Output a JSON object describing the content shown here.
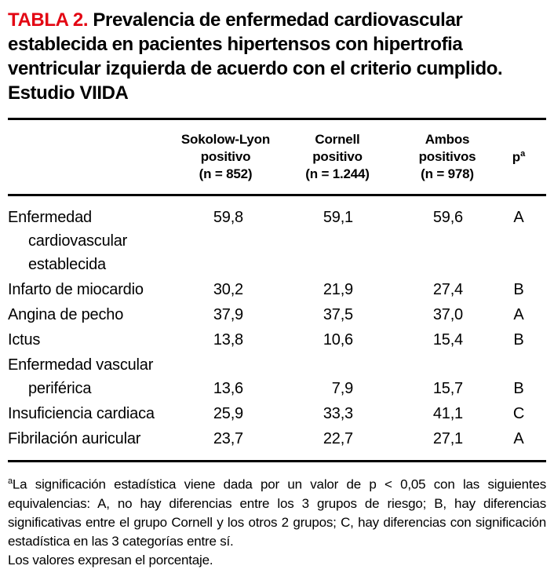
{
  "title": {
    "label": "TABLA 2.",
    "text": "Prevalencia de enfermedad cardiovascular establecida en pacientes hipertensos con hipertrofia ventricular izquierda de acuerdo con el criterio cumplido. Estudio VIIDA"
  },
  "colors": {
    "accent_red": "#e30613",
    "text": "#000000",
    "rule": "#000000"
  },
  "table": {
    "headers": [
      {
        "lines": [
          "Sokolow-Lyon",
          "positivo",
          "(n = 852)"
        ]
      },
      {
        "lines": [
          "Cornell",
          "positivo",
          "(n = 1.244)"
        ]
      },
      {
        "lines": [
          "Ambos",
          "positivos",
          "(n = 978)"
        ]
      }
    ],
    "p_header": {
      "label": "p",
      "sup": "a"
    },
    "rows": [
      {
        "lines": [
          "Enfermedad",
          "cardiovascular",
          "establecida"
        ],
        "values": [
          "59,8",
          "59,1",
          "59,6"
        ],
        "p": "A",
        "values_line": 0
      },
      {
        "lines": [
          "Infarto de miocardio"
        ],
        "values": [
          "30,2",
          "21,9",
          "27,4"
        ],
        "p": "B",
        "values_line": 0
      },
      {
        "lines": [
          "Angina de pecho"
        ],
        "values": [
          "37,9",
          "37,5",
          "37,0"
        ],
        "p": "A",
        "values_line": 0
      },
      {
        "lines": [
          "Ictus"
        ],
        "values": [
          "13,8",
          "10,6",
          "15,4"
        ],
        "p": "B",
        "values_line": 0
      },
      {
        "lines": [
          "Enfermedad vascular",
          "periférica"
        ],
        "values": [
          "13,6",
          "7,9",
          "15,7"
        ],
        "p": "B",
        "values_line": 1
      },
      {
        "lines": [
          "Insuficiencia cardiaca"
        ],
        "values": [
          "25,9",
          "33,3",
          "41,1"
        ],
        "p": "C",
        "values_line": 0
      },
      {
        "lines": [
          "Fibrilación auricular"
        ],
        "values": [
          "23,7",
          "22,7",
          "27,1"
        ],
        "p": "A",
        "values_line": 0
      }
    ]
  },
  "footnote": {
    "sup": "a",
    "text": "La significación estadística viene dada por un valor de p < 0,05 con las siguientes equivalencias: A, no hay diferencias entre los 3 grupos de riesgo; B, hay diferencias significativas entre el grupo Cornell y los otros 2 grupos; C, hay diferencias con significación estadística en las 3 categorías entre sí.",
    "text2": "Los valores expresan el porcentaje."
  }
}
